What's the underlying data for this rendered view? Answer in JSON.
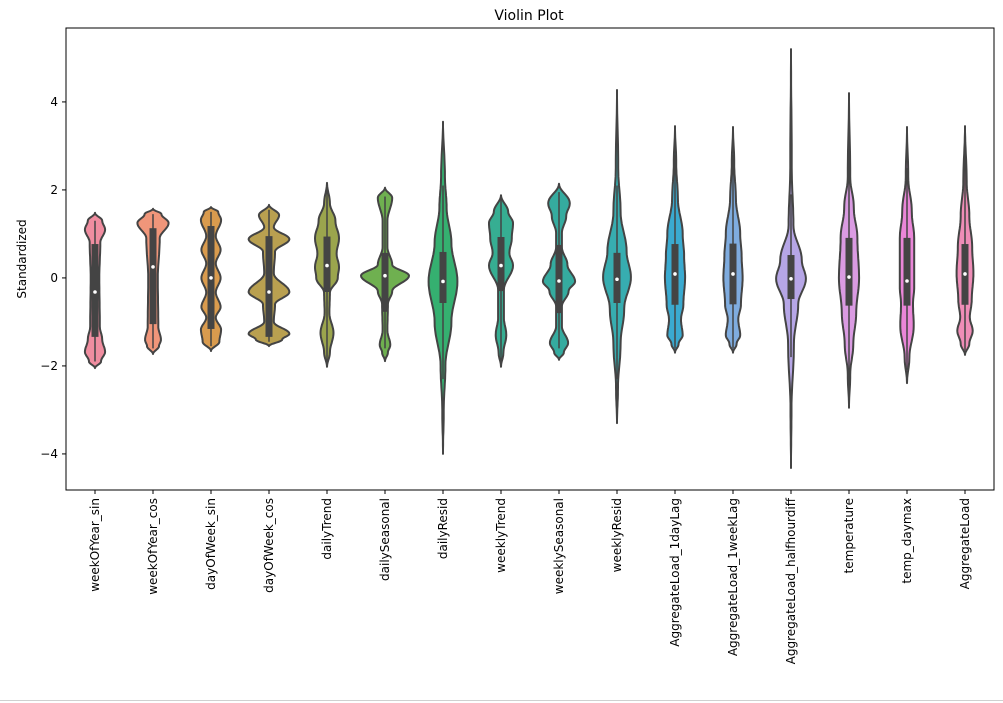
{
  "chart_data": {
    "type": "violin",
    "title": "Violin Plot",
    "xlabel": "",
    "ylabel": "Standardized",
    "ylim": [
      -4.82,
      5.68
    ],
    "yticks": [
      -4,
      -2,
      0,
      2,
      4
    ],
    "grid": false,
    "series": [
      {
        "name": "weekOfYear_sin",
        "color": "#f08da0",
        "median": -0.32,
        "q1": -1.34,
        "q3": 0.77,
        "whisker": [
          -1.9,
          1.3
        ],
        "density": [
          [
            -2.05,
            0
          ],
          [
            -1.9,
            0.25
          ],
          [
            -1.68,
            0.42
          ],
          [
            -1.4,
            0.3
          ],
          [
            -1.1,
            0.2
          ],
          [
            0,
            0.18
          ],
          [
            0.8,
            0.22
          ],
          [
            1.1,
            0.42
          ],
          [
            1.3,
            0.3
          ],
          [
            1.48,
            0
          ]
        ]
      },
      {
        "name": "weekOfYear_cos",
        "color": "#f0967a",
        "median": 0.25,
        "q1": -1.05,
        "q3": 1.13,
        "whisker": [
          -1.6,
          1.45
        ],
        "density": [
          [
            -1.73,
            0
          ],
          [
            -1.55,
            0.25
          ],
          [
            -1.41,
            0.33
          ],
          [
            -1.1,
            0.22
          ],
          [
            0,
            0.2
          ],
          [
            0.9,
            0.28
          ],
          [
            1.25,
            0.65
          ],
          [
            1.45,
            0.35
          ],
          [
            1.57,
            0
          ]
        ]
      },
      {
        "name": "dayOfWeek_sin",
        "color": "#d99b4e",
        "median": 0.0,
        "q1": -1.16,
        "q3": 1.18,
        "whisker": [
          -1.55,
          1.5
        ],
        "density": [
          [
            -1.66,
            0
          ],
          [
            -1.45,
            0.35
          ],
          [
            -1.18,
            0.42
          ],
          [
            -0.9,
            0.2
          ],
          [
            -0.66,
            0.4
          ],
          [
            -0.33,
            0.2
          ],
          [
            0,
            0.4
          ],
          [
            0.33,
            0.2
          ],
          [
            0.64,
            0.4
          ],
          [
            0.95,
            0.2
          ],
          [
            1.32,
            0.42
          ],
          [
            1.5,
            0.3
          ],
          [
            1.61,
            0
          ]
        ]
      },
      {
        "name": "dayOfWeek_cos",
        "color": "#b9a050",
        "median": -0.32,
        "q1": -1.34,
        "q3": 0.95,
        "whisker": [
          -1.45,
          1.55
        ],
        "density": [
          [
            -1.55,
            0
          ],
          [
            -1.4,
            0.55
          ],
          [
            -1.27,
            0.85
          ],
          [
            -1.0,
            0.2
          ],
          [
            -0.6,
            0.25
          ],
          [
            -0.32,
            0.85
          ],
          [
            0.1,
            0.2
          ],
          [
            0.6,
            0.25
          ],
          [
            0.88,
            0.85
          ],
          [
            1.15,
            0.2
          ],
          [
            1.43,
            0.42
          ],
          [
            1.66,
            0
          ]
        ]
      },
      {
        "name": "dailyTrend",
        "color": "#9ba54d",
        "median": 0.28,
        "q1": -0.32,
        "q3": 0.94,
        "whisker": [
          -1.9,
          2.1
        ],
        "density": [
          [
            -2.02,
            0
          ],
          [
            -1.7,
            0.12
          ],
          [
            -1.25,
            0.27
          ],
          [
            -0.8,
            0.1
          ],
          [
            -0.34,
            0.12
          ],
          [
            0.0,
            0.45
          ],
          [
            0.25,
            0.5
          ],
          [
            0.55,
            0.4
          ],
          [
            0.9,
            0.5
          ],
          [
            1.3,
            0.35
          ],
          [
            1.7,
            0.12
          ],
          [
            2.16,
            0
          ]
        ]
      },
      {
        "name": "dailySeasonal",
        "color": "#6fb050",
        "median": 0.05,
        "q1": -0.77,
        "q3": 0.57,
        "whisker": [
          -1.6,
          1.85
        ],
        "density": [
          [
            -1.89,
            0
          ],
          [
            -1.7,
            0.12
          ],
          [
            -1.52,
            0.22
          ],
          [
            -1.2,
            0.1
          ],
          [
            -0.6,
            0.12
          ],
          [
            -0.3,
            0.3
          ],
          [
            0.05,
            1.0
          ],
          [
            0.3,
            0.3
          ],
          [
            0.7,
            0.1
          ],
          [
            1.3,
            0.1
          ],
          [
            1.82,
            0.3
          ],
          [
            2.05,
            0
          ]
        ]
      },
      {
        "name": "dailyResid",
        "color": "#35b070",
        "median": -0.08,
        "q1": -0.57,
        "q3": 0.59,
        "whisker": [
          -2.3,
          2.1
        ],
        "density": [
          [
            -4.0,
            0
          ],
          [
            -3,
            0.03
          ],
          [
            -2,
            0.1
          ],
          [
            -1,
            0.35
          ],
          [
            -0.08,
            0.6
          ],
          [
            0.8,
            0.35
          ],
          [
            1.6,
            0.15
          ],
          [
            2.3,
            0.08
          ],
          [
            3.55,
            0
          ]
        ]
      },
      {
        "name": "weeklyTrend",
        "color": "#36ae92",
        "median": 0.28,
        "q1": -0.3,
        "q3": 0.93,
        "whisker": [
          -1.9,
          1.8
        ],
        "density": [
          [
            -2.02,
            0
          ],
          [
            -1.7,
            0.1
          ],
          [
            -1.3,
            0.22
          ],
          [
            -0.9,
            0.12
          ],
          [
            -0.27,
            0.12
          ],
          [
            0.28,
            0.5
          ],
          [
            0.57,
            0.35
          ],
          [
            0.9,
            0.45
          ],
          [
            1.25,
            0.5
          ],
          [
            1.5,
            0.3
          ],
          [
            1.88,
            0
          ]
        ]
      },
      {
        "name": "weeklySeasonal",
        "color": "#35ab9f",
        "median": -0.07,
        "q1": -0.8,
        "q3": 0.75,
        "whisker": [
          -1.6,
          1.95
        ],
        "density": [
          [
            -1.86,
            0
          ],
          [
            -1.7,
            0.2
          ],
          [
            -1.48,
            0.38
          ],
          [
            -1.1,
            0.12
          ],
          [
            -0.65,
            0.12
          ],
          [
            -0.3,
            0.4
          ],
          [
            -0.08,
            0.67
          ],
          [
            0.3,
            0.35
          ],
          [
            0.7,
            0.12
          ],
          [
            1.02,
            0.12
          ],
          [
            1.4,
            0.3
          ],
          [
            1.7,
            0.45
          ],
          [
            2.14,
            0
          ]
        ]
      },
      {
        "name": "weeklyResid",
        "color": "#37adb0",
        "median": -0.03,
        "q1": -0.57,
        "q3": 0.57,
        "whisker": [
          -2.3,
          2.1
        ],
        "density": [
          [
            -3.3,
            0
          ],
          [
            -2.5,
            0.04
          ],
          [
            -1.5,
            0.15
          ],
          [
            -0.7,
            0.3
          ],
          [
            0.02,
            0.58
          ],
          [
            0.6,
            0.4
          ],
          [
            1.5,
            0.15
          ],
          [
            2.5,
            0.05
          ],
          [
            4.27,
            0
          ]
        ]
      },
      {
        "name": "AggregateLoad_1dayLag",
        "color": "#3aaad0",
        "median": 0.09,
        "q1": -0.61,
        "q3": 0.77,
        "whisker": [
          -1.6,
          2.8
        ],
        "density": [
          [
            -1.7,
            0
          ],
          [
            -1.5,
            0.15
          ],
          [
            -1.3,
            0.32
          ],
          [
            -0.95,
            0.25
          ],
          [
            -0.6,
            0.35
          ],
          [
            0,
            0.42
          ],
          [
            0.5,
            0.38
          ],
          [
            1.0,
            0.32
          ],
          [
            1.8,
            0.12
          ],
          [
            2.6,
            0.05
          ],
          [
            3.45,
            0
          ]
        ]
      },
      {
        "name": "AggregateLoad_1weekLag",
        "color": "#7facdf",
        "median": 0.09,
        "q1": -0.6,
        "q3": 0.78,
        "whisker": [
          -1.6,
          2.8
        ],
        "density": [
          [
            -1.7,
            0
          ],
          [
            -1.5,
            0.15
          ],
          [
            -1.3,
            0.3
          ],
          [
            -0.95,
            0.22
          ],
          [
            -0.6,
            0.33
          ],
          [
            0,
            0.4
          ],
          [
            0.5,
            0.36
          ],
          [
            1.0,
            0.3
          ],
          [
            1.8,
            0.12
          ],
          [
            2.6,
            0.05
          ],
          [
            3.43,
            0
          ]
        ]
      },
      {
        "name": "AggregateLoad_halfhourdiff",
        "color": "#b6a6e6",
        "median": -0.02,
        "q1": -0.48,
        "q3": 0.52,
        "whisker": [
          -1.8,
          1.9
        ],
        "density": [
          [
            -4.32,
            0
          ],
          [
            -3,
            0.02
          ],
          [
            -1.5,
            0.12
          ],
          [
            -0.6,
            0.3
          ],
          [
            -0.02,
            0.62
          ],
          [
            0.4,
            0.45
          ],
          [
            1.2,
            0.1
          ],
          [
            2.5,
            0.03
          ],
          [
            5.2,
            0
          ]
        ]
      },
      {
        "name": "temperature",
        "color": "#da9be2",
        "median": 0.02,
        "q1": -0.63,
        "q3": 0.91,
        "whisker": [
          -2.7,
          3.0
        ],
        "density": [
          [
            -2.95,
            0
          ],
          [
            -2.2,
            0.05
          ],
          [
            -1.5,
            0.18
          ],
          [
            -0.8,
            0.3
          ],
          [
            0,
            0.42
          ],
          [
            0.9,
            0.35
          ],
          [
            1.6,
            0.2
          ],
          [
            2.3,
            0.05
          ],
          [
            4.2,
            0
          ]
        ]
      },
      {
        "name": "temp_daymax",
        "color": "#ea86d8",
        "median": -0.07,
        "q1": -0.63,
        "q3": 0.91,
        "whisker": [
          -2.1,
          2.5
        ],
        "density": [
          [
            -2.39,
            0
          ],
          [
            -1.8,
            0.1
          ],
          [
            -1.1,
            0.28
          ],
          [
            -0.6,
            0.25
          ],
          [
            -0.2,
            0.3
          ],
          [
            0.3,
            0.3
          ],
          [
            0.9,
            0.3
          ],
          [
            1.5,
            0.2
          ],
          [
            2.3,
            0.05
          ],
          [
            3.43,
            0
          ]
        ]
      },
      {
        "name": "AggregateLoad",
        "color": "#ef8db7",
        "median": 0.09,
        "q1": -0.61,
        "q3": 0.77,
        "whisker": [
          -1.65,
          2.8
        ],
        "density": [
          [
            -1.75,
            0
          ],
          [
            -1.5,
            0.18
          ],
          [
            -1.2,
            0.32
          ],
          [
            -0.9,
            0.2
          ],
          [
            -0.5,
            0.28
          ],
          [
            0.1,
            0.35
          ],
          [
            0.7,
            0.3
          ],
          [
            1.4,
            0.18
          ],
          [
            2.2,
            0.07
          ],
          [
            3.45,
            0
          ]
        ]
      }
    ]
  }
}
